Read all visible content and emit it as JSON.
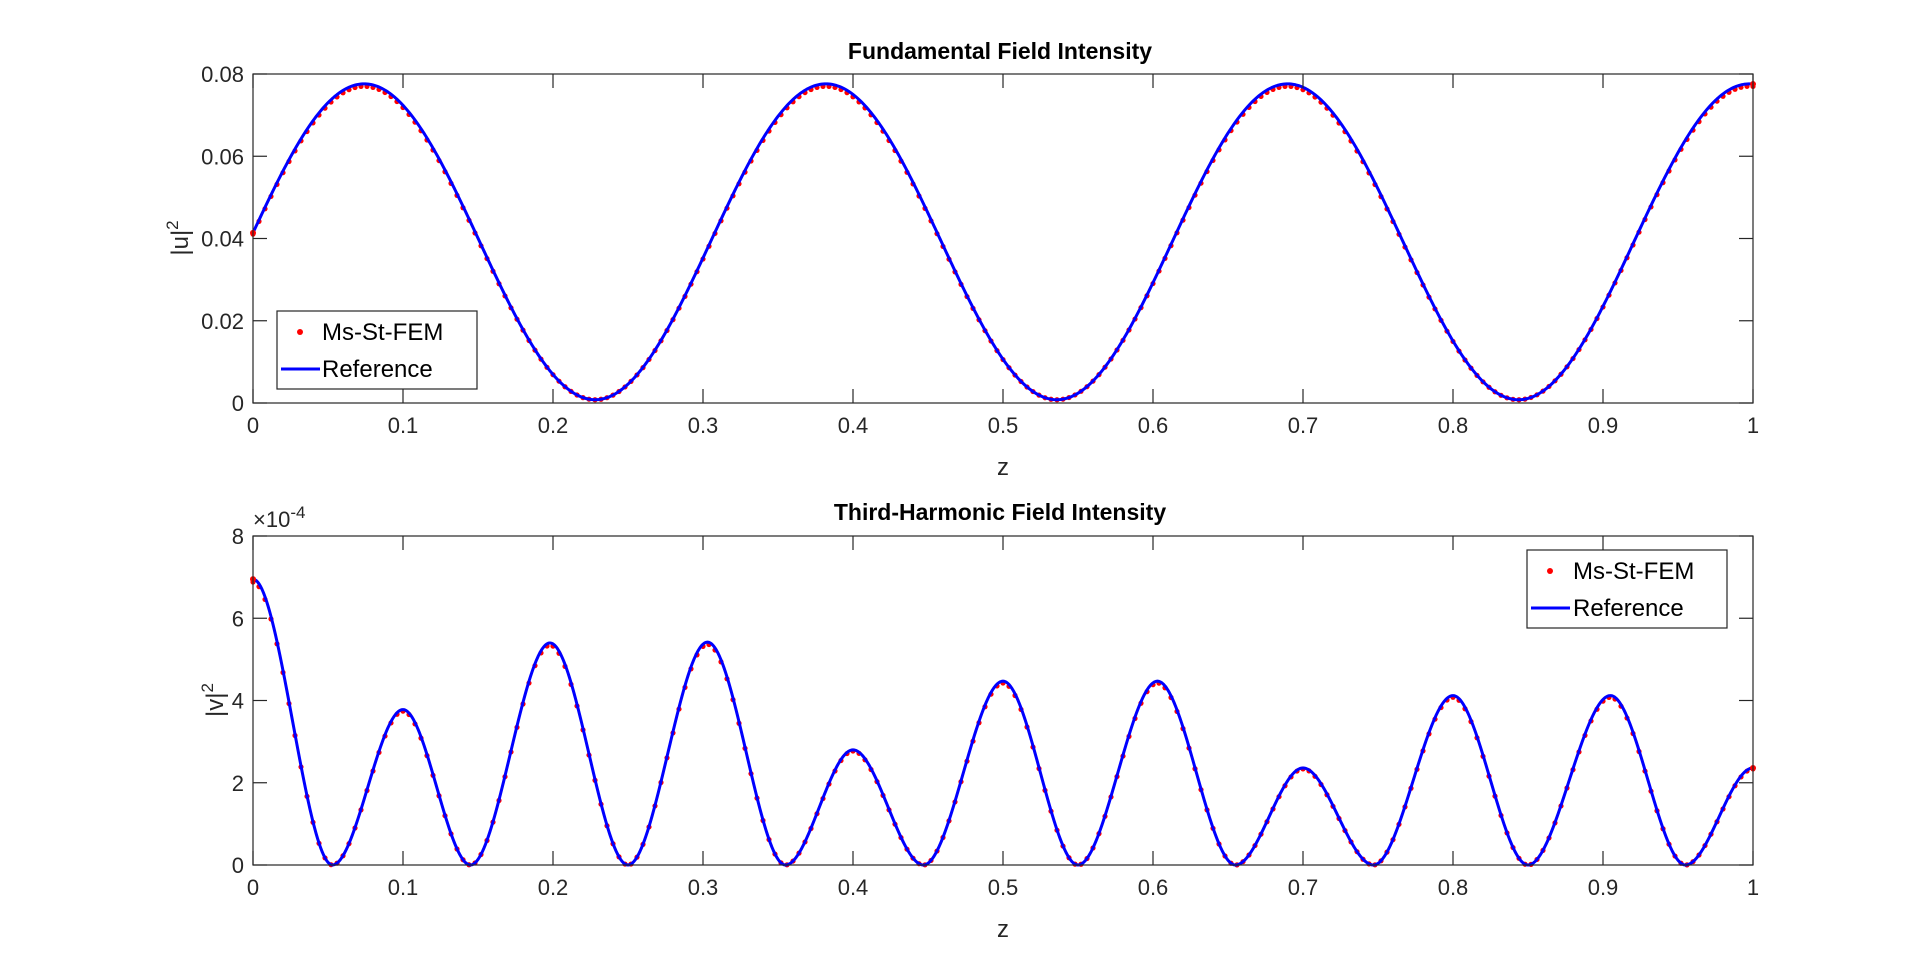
{
  "chart_data": [
    {
      "type": "line",
      "title": "Fundamental Field Intensity",
      "xlabel": "z",
      "ylabel": "|u|",
      "ylabel_superscript": "2",
      "xlim": [
        0,
        1
      ],
      "ylim": [
        0,
        0.08
      ],
      "xticks": [
        0,
        0.1,
        0.2,
        0.3,
        0.4,
        0.5,
        0.6,
        0.7,
        0.8,
        0.9,
        1
      ],
      "xtick_labels": [
        "0",
        "0.1",
        "0.2",
        "0.3",
        "0.4",
        "0.5",
        "0.6",
        "0.7",
        "0.8",
        "0.9",
        "1"
      ],
      "yticks": [
        0,
        0.02,
        0.04,
        0.06,
        0.08
      ],
      "ytick_labels": [
        "0",
        "0.02",
        "0.04",
        "0.06",
        "0.08"
      ],
      "grid": false,
      "legend_position": "bottom-left",
      "model": {
        "form": "A + B*sin(2*pi*(z - z0)/P)",
        "A": 0.0392,
        "B": 0.0384,
        "z0": -0.00278,
        "P": 0.3078
      },
      "series": [
        {
          "name": "Ms-St-FEM",
          "style": "markers",
          "color": "#ff0000",
          "marker_step": 0.004,
          "offset": -0.0006
        },
        {
          "name": "Reference",
          "style": "line",
          "color": "#0000ff",
          "step": 0.001
        }
      ]
    },
    {
      "type": "line",
      "title": "Third-Harmonic Field Intensity",
      "xlabel": "z",
      "ylabel": "|v|",
      "ylabel_superscript": "2",
      "scale_factor_base": "×10",
      "scale_factor_exponent": "-4",
      "xlim": [
        0,
        1
      ],
      "ylim": [
        0,
        8
      ],
      "xticks": [
        0,
        0.1,
        0.2,
        0.3,
        0.4,
        0.5,
        0.6,
        0.7,
        0.8,
        0.9,
        1
      ],
      "xtick_labels": [
        "0",
        "0.1",
        "0.2",
        "0.3",
        "0.4",
        "0.5",
        "0.6",
        "0.7",
        "0.8",
        "0.9",
        "1"
      ],
      "yticks": [
        0,
        2,
        4,
        6,
        8
      ],
      "ytick_labels": [
        "0",
        "2",
        "4",
        "6",
        "8"
      ],
      "grid": false,
      "legend_position": "top-right",
      "minima_z": [
        0.053,
        0.145,
        0.25,
        0.355,
        0.447,
        0.55,
        0.655,
        0.747,
        0.85,
        0.955
      ],
      "peaks": [
        {
          "z": 0.0,
          "y": 6.95
        },
        {
          "z": 0.1,
          "y": 3.78
        },
        {
          "z": 0.198,
          "y": 5.4
        },
        {
          "z": 0.303,
          "y": 5.42
        },
        {
          "z": 0.4,
          "y": 2.8
        },
        {
          "z": 0.5,
          "y": 4.47
        },
        {
          "z": 0.603,
          "y": 4.47
        },
        {
          "z": 0.7,
          "y": 2.36
        },
        {
          "z": 0.8,
          "y": 4.12
        },
        {
          "z": 0.905,
          "y": 4.12
        },
        {
          "z": 1.0,
          "y": 2.36
        }
      ],
      "series": [
        {
          "name": "Ms-St-FEM",
          "style": "markers",
          "color": "#ff0000",
          "marker_step": 0.004,
          "offset": -0.08
        },
        {
          "name": "Reference",
          "style": "line",
          "color": "#0000ff",
          "step": 0.001
        }
      ]
    }
  ]
}
